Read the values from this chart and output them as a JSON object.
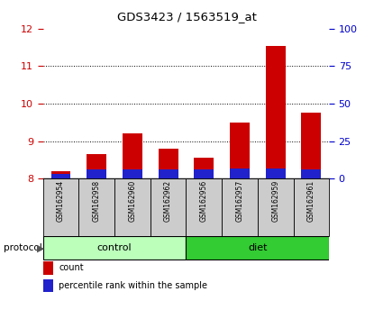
{
  "title": "GDS3423 / 1563519_at",
  "samples": [
    "GSM162954",
    "GSM162958",
    "GSM162960",
    "GSM162962",
    "GSM162956",
    "GSM162957",
    "GSM162959",
    "GSM162961"
  ],
  "count_values": [
    8.2,
    8.65,
    9.2,
    8.8,
    8.55,
    9.5,
    11.55,
    9.75
  ],
  "percentile_values": [
    3,
    6,
    6,
    6,
    6,
    7,
    7,
    6
  ],
  "bar_bottom": 8.0,
  "ylim_left": [
    8,
    12
  ],
  "ylim_right": [
    0,
    100
  ],
  "yticks_left": [
    8,
    9,
    10,
    11,
    12
  ],
  "yticks_right": [
    0,
    25,
    50,
    75,
    100
  ],
  "grid_lines": [
    9,
    10,
    11
  ],
  "count_color": "#cc0000",
  "percentile_color": "#2222cc",
  "control_color": "#bbffbb",
  "diet_color": "#33cc33",
  "label_bg_color": "#cccccc",
  "left_tick_color": "#cc0000",
  "right_tick_color": "#0000cc",
  "bar_width": 0.55,
  "n_control": 4,
  "n_diet": 4
}
